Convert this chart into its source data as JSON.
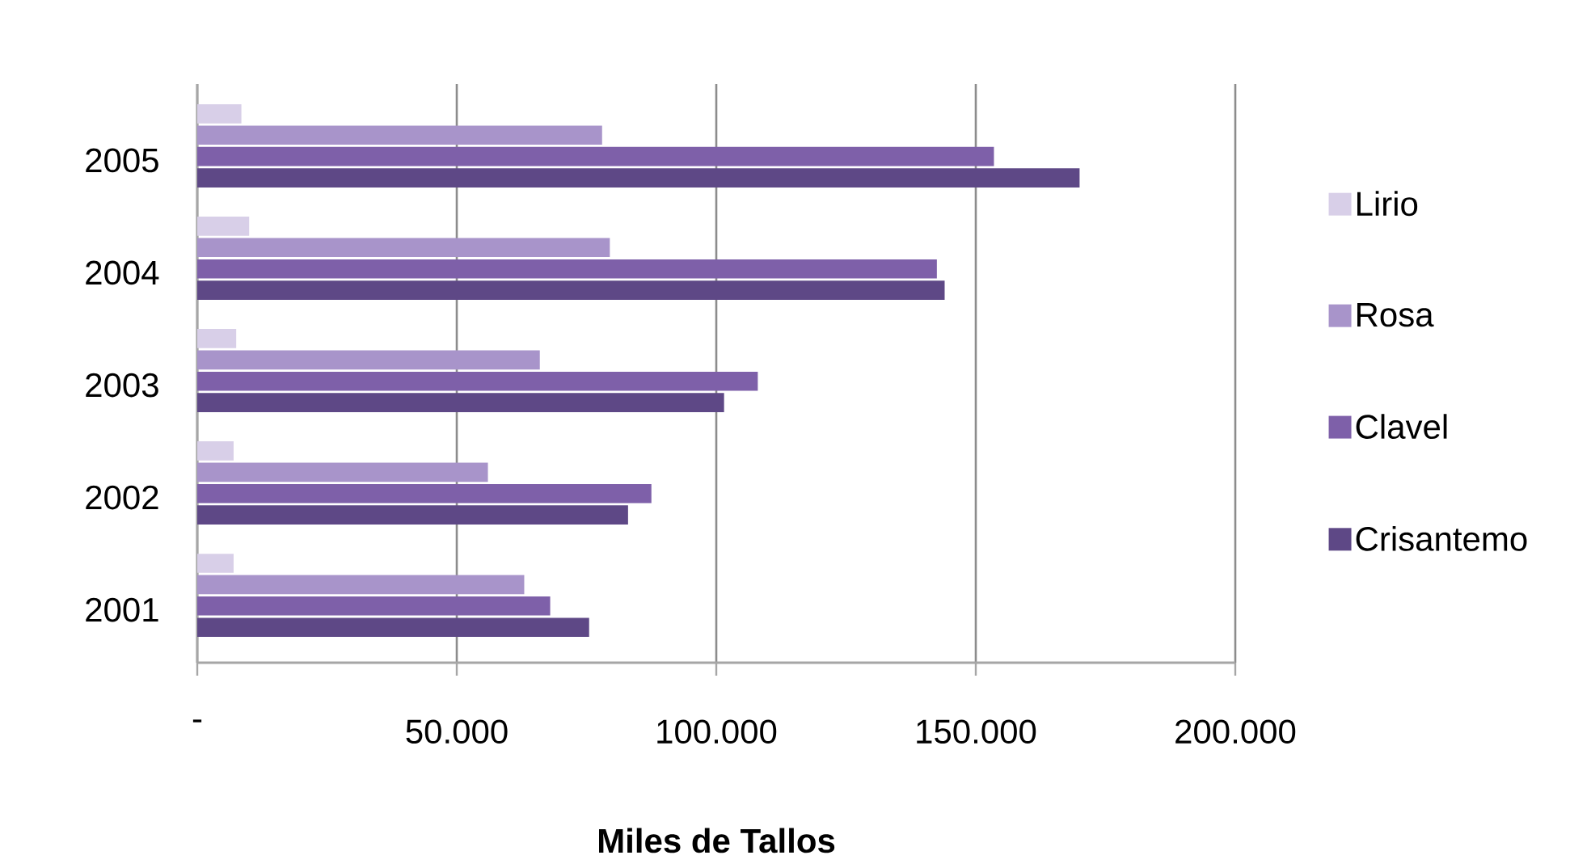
{
  "chart_data": {
    "type": "bar",
    "orientation": "horizontal",
    "categories": [
      "2005",
      "2004",
      "2003",
      "2002",
      "2001"
    ],
    "xlabel": "Miles de Tallos",
    "xlim": [
      0,
      200000
    ],
    "xticks": [
      {
        "value": 0,
        "label": "-"
      },
      {
        "value": 50000,
        "label": "50.000"
      },
      {
        "value": 100000,
        "label": "100.000"
      },
      {
        "value": 150000,
        "label": "150.000"
      },
      {
        "value": 200000,
        "label": "200.000"
      }
    ],
    "grid": "x",
    "legend": "right",
    "series": [
      {
        "name": "Lirio",
        "color": "#d8cfe8",
        "values": [
          8500,
          10000,
          7500,
          7000,
          7000
        ]
      },
      {
        "name": "Rosa",
        "color": "#a894ca",
        "values": [
          78000,
          79500,
          66000,
          56000,
          63000
        ]
      },
      {
        "name": "Clavel",
        "color": "#7e60a9",
        "values": [
          153500,
          142500,
          108000,
          87500,
          68000
        ]
      },
      {
        "name": "Crisantemo",
        "color": "#5e4886",
        "values": [
          170000,
          144000,
          101500,
          83000,
          75500
        ]
      }
    ]
  }
}
